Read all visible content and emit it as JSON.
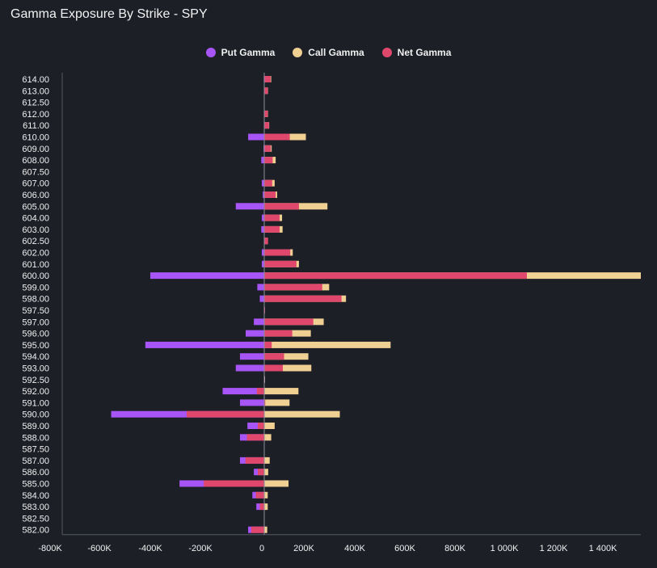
{
  "title": "Gamma Exposure By Strike - SPY",
  "legend": [
    {
      "label": "Put Gamma",
      "color": "#a855f7"
    },
    {
      "label": "Call Gamma",
      "color": "#f0cf93"
    },
    {
      "label": "Net Gamma",
      "color": "#e0476c"
    }
  ],
  "chart_data": {
    "type": "bar",
    "orientation": "horizontal",
    "title": "Gamma Exposure By Strike - SPY",
    "xlim": [
      -800000,
      1520000
    ],
    "x_ticks": [
      {
        "value": -800000,
        "label": "-800K"
      },
      {
        "value": -600000,
        "label": "-600K"
      },
      {
        "value": -400000,
        "label": "-400K"
      },
      {
        "value": -200000,
        "label": "-200K"
      },
      {
        "value": 0,
        "label": "0"
      },
      {
        "value": 200000,
        "label": "200K"
      },
      {
        "value": 400000,
        "label": "400K"
      },
      {
        "value": 600000,
        "label": "600K"
      },
      {
        "value": 800000,
        "label": "800K"
      },
      {
        "value": 1000000,
        "label": "1 000K"
      },
      {
        "value": 1200000,
        "label": "1 200K"
      },
      {
        "value": 1400000,
        "label": "1 400K"
      }
    ],
    "categories": [
      "614.00",
      "613.00",
      "612.50",
      "612.00",
      "611.00",
      "610.00",
      "609.00",
      "608.00",
      "607.50",
      "607.00",
      "606.00",
      "605.00",
      "604.00",
      "603.00",
      "602.50",
      "602.00",
      "601.00",
      "600.00",
      "599.00",
      "598.00",
      "597.50",
      "597.00",
      "596.00",
      "595.00",
      "594.00",
      "593.00",
      "592.50",
      "592.00",
      "591.00",
      "590.00",
      "589.00",
      "588.00",
      "587.50",
      "587.00",
      "586.00",
      "585.00",
      "584.00",
      "583.00",
      "582.50",
      "582.00"
    ],
    "series": [
      {
        "name": "Put Gamma",
        "color": "#a855f7",
        "values": [
          -2000,
          -1000,
          0,
          -1000,
          -1000,
          -65000,
          -3000,
          -12000,
          0,
          -10000,
          -6000,
          -115000,
          -10000,
          -12000,
          0,
          -10000,
          -10000,
          -460000,
          -28000,
          -18000,
          -1000,
          -42000,
          -75000,
          -480000,
          -98000,
          -115000,
          -1000,
          -168000,
          -98000,
          -618000,
          -68000,
          -98000,
          0,
          -98000,
          -42000,
          -342000,
          -48000,
          -32000,
          0,
          -65000
        ]
      },
      {
        "name": "Call Gamma",
        "color": "#f0cf93",
        "values": [
          28000,
          15000,
          0,
          15000,
          20000,
          168000,
          30000,
          46000,
          0,
          42000,
          52000,
          255000,
          72000,
          74000,
          15000,
          115000,
          140000,
          1520000,
          262000,
          330000,
          2000,
          240000,
          188000,
          510000,
          178000,
          190000,
          1000,
          138000,
          102000,
          305000,
          42000,
          28000,
          0,
          22000,
          16000,
          98000,
          14000,
          14000,
          0,
          12000
        ]
      },
      {
        "name": "Net Gamma",
        "color": "#e0476c",
        "values": [
          26000,
          14000,
          0,
          14000,
          19000,
          103000,
          27000,
          34000,
          0,
          32000,
          46000,
          140000,
          62000,
          62000,
          15000,
          105000,
          130000,
          1060000,
          234000,
          312000,
          1000,
          198000,
          113000,
          30000,
          80000,
          75000,
          0,
          -30000,
          4000,
          -313000,
          -26000,
          -70000,
          0,
          -76000,
          -26000,
          -244000,
          -34000,
          -18000,
          0,
          -53000
        ]
      }
    ]
  }
}
